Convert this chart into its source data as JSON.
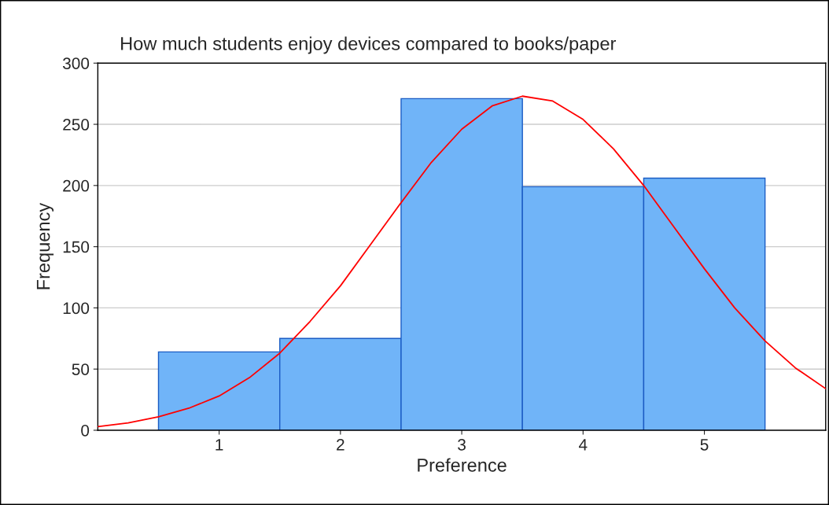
{
  "chart_data": {
    "type": "histogram",
    "title": "How much students enjoy devices compared to books/paper",
    "xlabel": "Preference",
    "ylabel": "Frequency",
    "bins": [
      0.5,
      1.5,
      2.5,
      3.5,
      4.5,
      5.5
    ],
    "values": [
      64,
      75,
      271,
      199,
      206
    ],
    "color": "#70b4f8",
    "series": [
      {
        "type": "line",
        "color": "#ff0000",
        "x": [
          0,
          0.25,
          0.5,
          0.75,
          1,
          1.25,
          1.5,
          1.75,
          2,
          2.25,
          2.5,
          2.75,
          3,
          3.25,
          3.5,
          3.75,
          4,
          4.25,
          4.5,
          4.75,
          5,
          5.25,
          5.5,
          5.75,
          6
        ],
        "values": [
          3,
          6,
          11,
          18,
          28,
          43,
          63,
          89,
          118,
          152,
          186,
          219,
          246,
          265,
          273,
          269,
          254,
          230,
          200,
          166,
          132,
          100,
          73,
          51,
          34
        ]
      }
    ],
    "xlim": [
      0,
      6
    ],
    "xticks": [
      1,
      2,
      3,
      4,
      5
    ],
    "ylim": [
      0,
      300
    ],
    "yticks": [
      0,
      50,
      100,
      150,
      200,
      250,
      300
    ],
    "grid": "y",
    "marker": "none",
    "line_style": "solid"
  }
}
